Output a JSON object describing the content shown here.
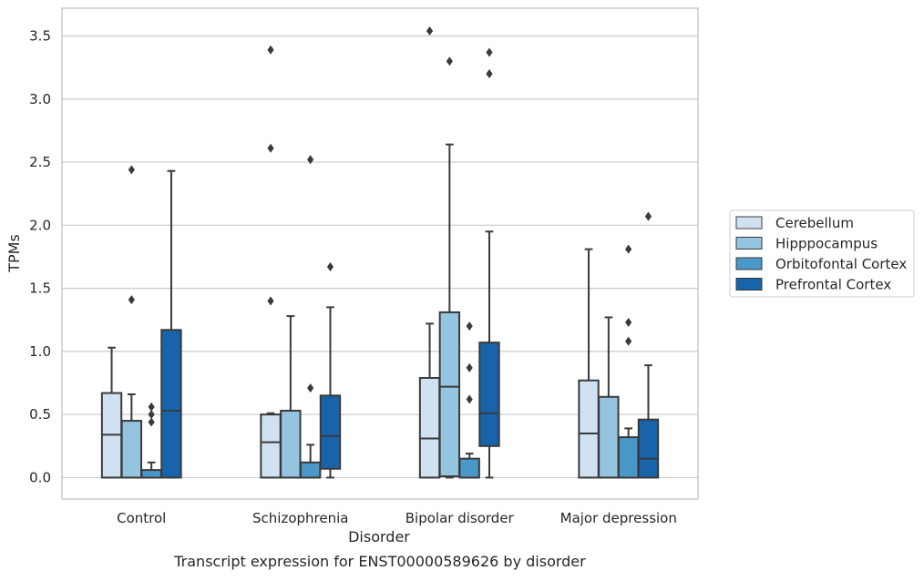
{
  "caption": "Transcript expression for ENST00000589626 by disorder",
  "chart_data": {
    "type": "box",
    "title": "",
    "xlabel": "Disorder",
    "ylabel": "TPMs",
    "ylim": [
      -0.17,
      3.72
    ],
    "yticks": [
      0.0,
      0.5,
      1.0,
      1.5,
      2.0,
      2.5,
      3.0,
      3.5
    ],
    "ytick_labels": [
      "0.0",
      "0.5",
      "1.0",
      "1.5",
      "2.0",
      "2.5",
      "3.0",
      "3.5"
    ],
    "grid": true,
    "legend_position": "right",
    "categories": [
      "Control",
      "Schizophrenia",
      "Bipolar disorder",
      "Major depression"
    ],
    "series": [
      {
        "name": "Cerebellum",
        "color": "#d0e1f2",
        "boxes": [
          {
            "whislo": 0.0,
            "q1": 0.0,
            "med": 0.34,
            "q3": 0.67,
            "whishi": 1.03,
            "fliers": []
          },
          {
            "whislo": 0.0,
            "q1": 0.0,
            "med": 0.28,
            "q3": 0.5,
            "whishi": 0.51,
            "fliers": [
              1.4,
              2.61,
              3.39
            ]
          },
          {
            "whislo": 0.0,
            "q1": 0.0,
            "med": 0.31,
            "q3": 0.79,
            "whishi": 1.22,
            "fliers": [
              3.54
            ]
          },
          {
            "whislo": 0.0,
            "q1": 0.0,
            "med": 0.35,
            "q3": 0.77,
            "whishi": 1.81,
            "fliers": []
          }
        ]
      },
      {
        "name": "Hipppocampus",
        "color": "#94c4df",
        "boxes": [
          {
            "whislo": 0.0,
            "q1": 0.0,
            "med": 0.0,
            "q3": 0.45,
            "whishi": 0.66,
            "fliers": [
              1.41,
              2.44
            ]
          },
          {
            "whislo": 0.0,
            "q1": 0.0,
            "med": 0.0,
            "q3": 0.53,
            "whishi": 1.28,
            "fliers": []
          },
          {
            "whislo": 0.0,
            "q1": 0.01,
            "med": 0.72,
            "q3": 1.31,
            "whishi": 2.64,
            "fliers": [
              3.3
            ]
          },
          {
            "whislo": 0.0,
            "q1": 0.0,
            "med": 0.0,
            "q3": 0.64,
            "whishi": 1.27,
            "fliers": []
          }
        ]
      },
      {
        "name": "Orbitofontal Cortex",
        "color": "#4a98c9",
        "boxes": [
          {
            "whislo": 0.0,
            "q1": 0.0,
            "med": 0.0,
            "q3": 0.06,
            "whishi": 0.12,
            "fliers": [
              0.44,
              0.5,
              0.56
            ]
          },
          {
            "whislo": 0.0,
            "q1": 0.0,
            "med": 0.0,
            "q3": 0.12,
            "whishi": 0.26,
            "fliers": [
              0.71,
              2.52
            ]
          },
          {
            "whislo": 0.0,
            "q1": 0.0,
            "med": 0.0,
            "q3": 0.15,
            "whishi": 0.19,
            "fliers": [
              0.62,
              0.87,
              1.2
            ]
          },
          {
            "whislo": 0.0,
            "q1": 0.0,
            "med": 0.0,
            "q3": 0.32,
            "whishi": 0.39,
            "fliers": [
              1.08,
              1.23,
              1.81
            ]
          }
        ]
      },
      {
        "name": "Prefrontal Cortex",
        "color": "#1764ab",
        "boxes": [
          {
            "whislo": 0.0,
            "q1": 0.0,
            "med": 0.53,
            "q3": 1.17,
            "whishi": 2.43,
            "fliers": []
          },
          {
            "whislo": 0.0,
            "q1": 0.07,
            "med": 0.33,
            "q3": 0.65,
            "whishi": 1.35,
            "fliers": [
              1.67
            ]
          },
          {
            "whislo": 0.0,
            "q1": 0.25,
            "med": 0.51,
            "q3": 1.07,
            "whishi": 1.95,
            "fliers": [
              3.2,
              3.37
            ]
          },
          {
            "whislo": 0.0,
            "q1": 0.0,
            "med": 0.15,
            "q3": 0.46,
            "whishi": 0.89,
            "fliers": [
              2.07
            ]
          }
        ]
      }
    ]
  }
}
